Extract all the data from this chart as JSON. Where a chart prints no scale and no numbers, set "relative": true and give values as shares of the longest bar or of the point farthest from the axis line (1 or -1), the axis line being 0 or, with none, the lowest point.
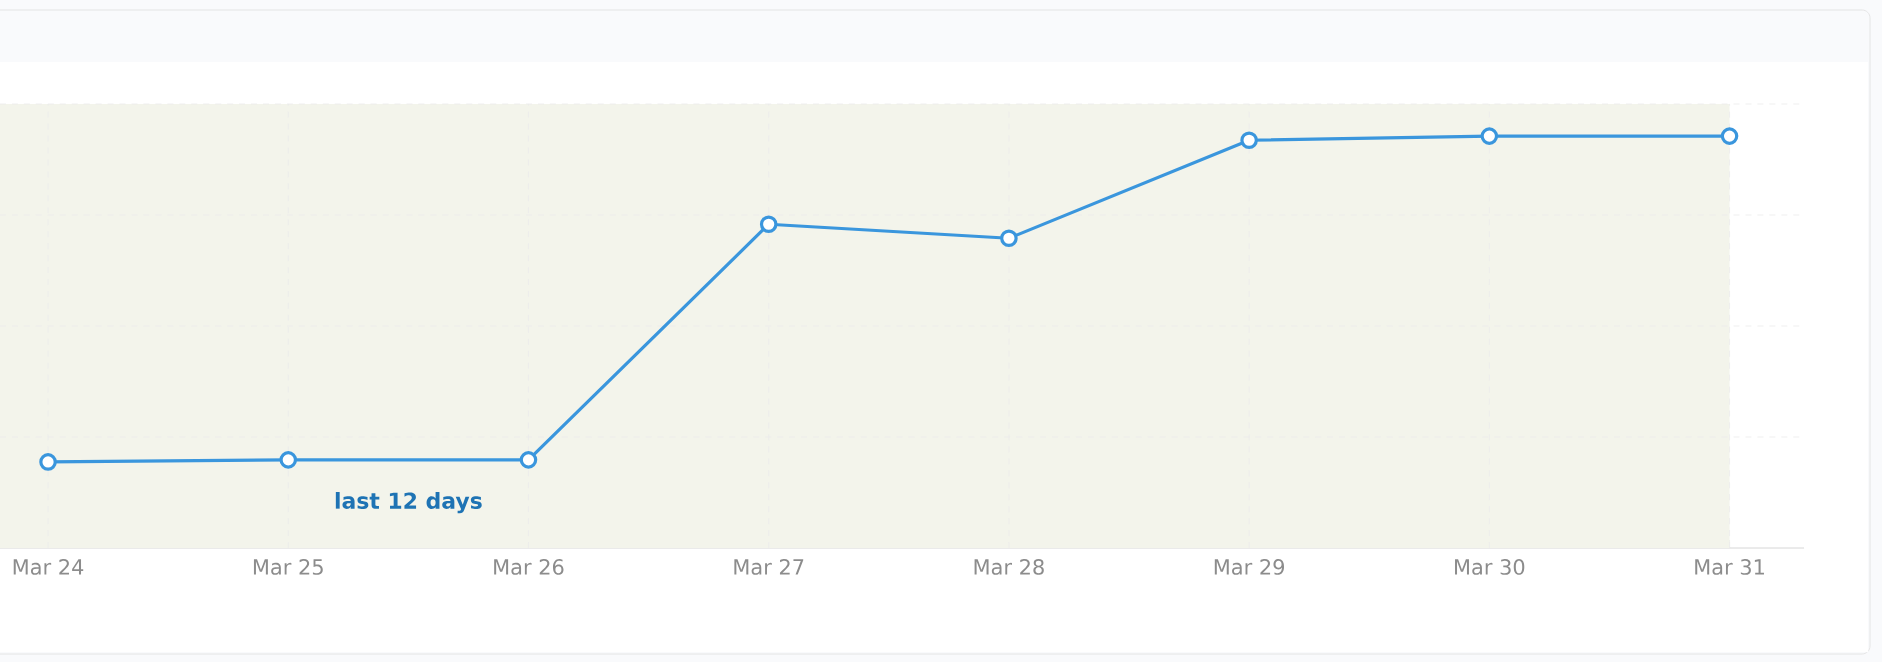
{
  "chart_data": {
    "type": "line",
    "relative": true,
    "categories": [
      "Mar 24",
      "Mar 25",
      "Mar 26",
      "Mar 27",
      "Mar 28",
      "Mar 29",
      "Mar 30",
      "Mar 31"
    ],
    "series": [
      {
        "color": "#3a96dd",
        "values": [
          0.209,
          0.214,
          0.214,
          0.786,
          0.752,
          0.99,
          1,
          1
        ]
      }
    ],
    "bands": [
      {
        "axis": "x",
        "from": "Mar 24",
        "to": "Mar 31",
        "label": "last 12 days",
        "color": "#f3f4eb"
      }
    ],
    "grid": true,
    "marker": "circle",
    "line_style": "solid",
    "tick_labels": "x"
  }
}
